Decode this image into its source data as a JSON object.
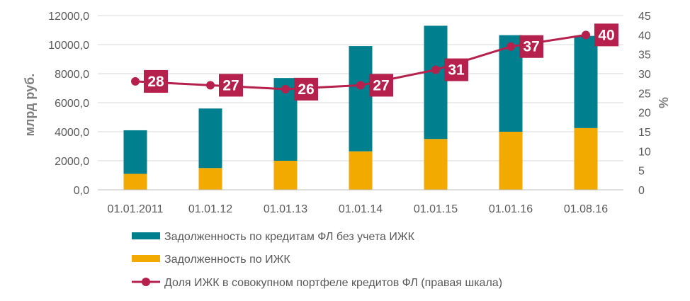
{
  "chart_data": {
    "type": "bar",
    "categories": [
      "01.01.2011",
      "01.01.12",
      "01.01.13",
      "01.01.14",
      "01.01.15",
      "01.01.16",
      "01.08.16"
    ],
    "series": [
      {
        "name": "Задолженность по ИЖК",
        "kind": "bar-stacked",
        "axis": "left",
        "color": "#f2a900",
        "values": [
          1100,
          1500,
          2000,
          2650,
          3500,
          4000,
          4250
        ]
      },
      {
        "name": "Задолженность по кредитам ФЛ без учета ИЖК",
        "kind": "bar-stacked",
        "axis": "left",
        "color": "#00808f",
        "values": [
          3000,
          4100,
          5700,
          7250,
          7800,
          6650,
          6350
        ]
      },
      {
        "name": "Доля ИЖК в совокупном портфеле кредитов ФЛ (правая шкала)",
        "kind": "line",
        "axis": "right",
        "color": "#b5204c",
        "values": [
          28,
          27,
          26,
          27,
          31,
          37,
          40
        ],
        "labels": [
          "28",
          "27",
          "26",
          "27",
          "31",
          "37",
          "40"
        ]
      }
    ],
    "ylabel": "млрд руб.",
    "ylabel_right": "%",
    "ylim": [
      0,
      12000
    ],
    "ylim_right": [
      0,
      45
    ],
    "yticks": [
      "0,0",
      "2000,0",
      "4000,0",
      "6000,0",
      "8000,0",
      "10000,0",
      "12000,0"
    ],
    "yticks_right": [
      "0",
      "5",
      "10",
      "15",
      "20",
      "25",
      "30",
      "35",
      "40",
      "45"
    ],
    "grid": true,
    "legend_position": "bottom",
    "legend_order": [
      1,
      0,
      2
    ]
  }
}
